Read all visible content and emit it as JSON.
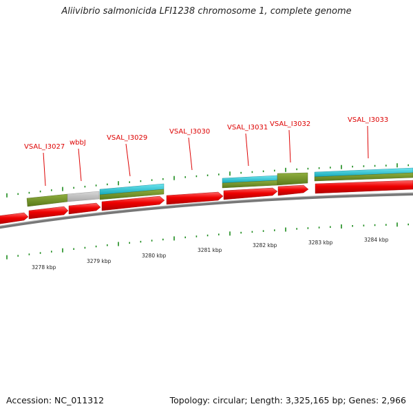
{
  "title": "Aliivibrio salmonicida LFI1238 chromosome 1, complete genome",
  "footer": {
    "accession": "Accession: NC_011312",
    "stats": "Topology: circular; Length: 3,325,165 bp; Genes: 2,966"
  },
  "gene_labels": [
    "VSAL_I3027",
    "wbbJ",
    "VSAL_I3029",
    "VSAL_I3030",
    "VSAL_I3031",
    "VSAL_I3032",
    "VSAL_I3033"
  ],
  "scale_labels": [
    "3278 kbp",
    "3279 kbp",
    "3280 kbp",
    "3281 kbp",
    "3282 kbp",
    "3283 kbp",
    "3284 kbp"
  ],
  "colors": {
    "cds_arrow": "#ee0000",
    "gene_olive": "#6b8e23",
    "gene_gray": "#bbbbbb",
    "gene_cyan": "#1ec8d8",
    "backbone": "#888888",
    "tick": "#1a8a1a",
    "label": "#dd0000"
  }
}
